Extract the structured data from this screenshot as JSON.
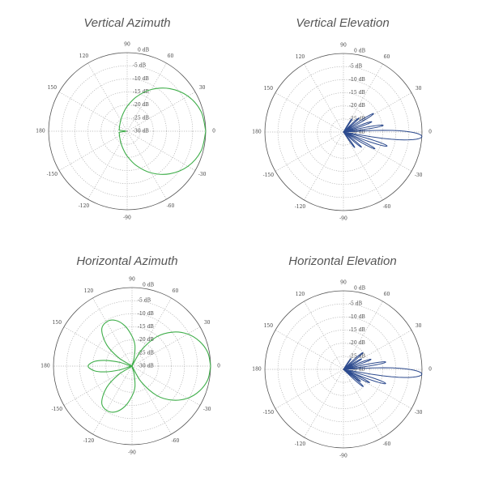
{
  "chart_data": [
    {
      "type": "polar-line",
      "title": "Vertical Azimuth",
      "color": "#3fae4a",
      "r_range_db": [
        -30,
        0
      ],
      "r_ticks": [
        "0 dB",
        "-5 dB",
        "-10 dB",
        "-15 dB",
        "-20 dB",
        "-25 dB",
        "-30 dB"
      ],
      "angle_ticks": [
        "0",
        "30",
        "60",
        "90",
        "120",
        "150",
        "180",
        "-150",
        "-120",
        "-90",
        "-60",
        "-30"
      ],
      "points": [
        [
          0,
          0
        ],
        [
          15,
          -0.8
        ],
        [
          30,
          -3.2
        ],
        [
          45,
          -7.0
        ],
        [
          60,
          -11.6
        ],
        [
          75,
          -16.4
        ],
        [
          90,
          -20.5
        ],
        [
          105,
          -23.4
        ],
        [
          120,
          -25.1
        ],
        [
          135,
          -26.1
        ],
        [
          150,
          -26.6
        ],
        [
          165,
          -26.9
        ],
        [
          172,
          -27
        ],
        [
          175,
          -29.5
        ],
        [
          180,
          -29.5
        ],
        [
          185,
          -29.5
        ],
        [
          188,
          -27
        ],
        [
          195,
          -26.9
        ],
        [
          210,
          -26.6
        ],
        [
          225,
          -26.1
        ],
        [
          240,
          -25.1
        ],
        [
          255,
          -23.4
        ],
        [
          270,
          -20.5
        ],
        [
          285,
          -16.4
        ],
        [
          300,
          -11.6
        ],
        [
          315,
          -7.0
        ],
        [
          330,
          -3.2
        ],
        [
          345,
          -0.8
        ],
        [
          360,
          0
        ]
      ]
    },
    {
      "type": "polar-lobes",
      "title": "Vertical Elevation",
      "color": "#2c4a8e",
      "r_range_db": [
        -30,
        0
      ],
      "r_ticks": [
        "0 dB",
        "-5 dB",
        "-10 dB",
        "-15 dB",
        "-20 dB",
        "-25 dB",
        "-30 dB"
      ],
      "angle_ticks": [
        "0",
        "30",
        "60",
        "90",
        "120",
        "150",
        "180",
        "-150",
        "-120",
        "-90",
        "-60",
        "-30"
      ],
      "lobes": [
        {
          "angle": -3.3,
          "peak_db": 0,
          "half_width": 7
        },
        {
          "angle": 9.6,
          "peak_db": -14.6,
          "half_width": 3
        },
        {
          "angle": 20,
          "peak_db": -18.5,
          "half_width": 3
        },
        {
          "angle": 31.5,
          "peak_db": -16.5,
          "half_width": 3
        },
        {
          "angle": 42,
          "peak_db": -22,
          "half_width": 3
        },
        {
          "angle": 57,
          "peak_db": -24,
          "half_width": 3
        },
        {
          "angle": -17.8,
          "peak_db": -12.5,
          "half_width": 3.5
        },
        {
          "angle": -28,
          "peak_db": -16.4,
          "half_width": 3
        },
        {
          "angle": -40,
          "peak_db": -21,
          "half_width": 3
        },
        {
          "angle": -54,
          "peak_db": -22.7,
          "half_width": 3
        }
      ]
    },
    {
      "type": "polar-line",
      "title": "Horizontal Azimuth",
      "color": "#3fae4a",
      "r_range_db": [
        -30,
        0
      ],
      "r_ticks": [
        "0 dB",
        "-5 dB",
        "-10 dB",
        "-15 dB",
        "-20 dB",
        "-25 dB",
        "-30 dB"
      ],
      "angle_ticks": [
        "0",
        "30",
        "60",
        "90",
        "120",
        "150",
        "180",
        "-150",
        "-120",
        "-90",
        "-60",
        "-30"
      ],
      "points": [
        [
          0,
          0
        ],
        [
          10,
          -0.6
        ],
        [
          20,
          -2.5
        ],
        [
          30,
          -5.5
        ],
        [
          40,
          -9.8
        ],
        [
          50,
          -15.4
        ],
        [
          60,
          -23.2
        ],
        [
          67,
          -30
        ],
        [
          75,
          -27
        ],
        [
          82,
          -22
        ],
        [
          90,
          -18.6
        ],
        [
          100,
          -14.4
        ],
        [
          110,
          -11.4
        ],
        [
          120,
          -10.5
        ],
        [
          130,
          -12
        ],
        [
          140,
          -17.4
        ],
        [
          148,
          -24
        ],
        [
          155,
          -30
        ],
        [
          163,
          -25
        ],
        [
          168,
          -19.5
        ],
        [
          173,
          -15.5
        ],
        [
          180,
          -13.2
        ],
        [
          187,
          -15.5
        ],
        [
          192,
          -19.5
        ],
        [
          197,
          -25
        ],
        [
          205,
          -30
        ],
        [
          212,
          -24
        ],
        [
          220,
          -17.4
        ],
        [
          230,
          -12
        ],
        [
          240,
          -10.5
        ],
        [
          250,
          -11.4
        ],
        [
          260,
          -14.4
        ],
        [
          270,
          -18.6
        ],
        [
          278,
          -22
        ],
        [
          285,
          -27
        ],
        [
          293,
          -30
        ],
        [
          300,
          -23.2
        ],
        [
          310,
          -15.4
        ],
        [
          320,
          -9.8
        ],
        [
          330,
          -5.5
        ],
        [
          340,
          -2.5
        ],
        [
          350,
          -0.6
        ],
        [
          360,
          0
        ]
      ]
    },
    {
      "type": "polar-lobes",
      "title": "Horizontal Elevation",
      "color": "#2c4a8e",
      "r_range_db": [
        -30,
        0
      ],
      "r_ticks": [
        "0 dB",
        "-5 dB",
        "-10 dB",
        "-15 dB",
        "-20 dB",
        "-25 dB",
        "-30 dB"
      ],
      "angle_ticks": [
        "0",
        "30",
        "60",
        "90",
        "120",
        "150",
        "180",
        "-150",
        "-120",
        "-90",
        "-60",
        "-30"
      ],
      "lobes": [
        {
          "angle": -3.5,
          "peak_db": 0,
          "half_width": 7
        },
        {
          "angle": 9.8,
          "peak_db": -13.6,
          "half_width": 3
        },
        {
          "angle": 20,
          "peak_db": -18.8,
          "half_width": 3
        },
        {
          "angle": 30,
          "peak_db": -22,
          "half_width": 3
        },
        {
          "angle": 40.7,
          "peak_db": -20.2,
          "half_width": 3
        },
        {
          "angle": 55,
          "peak_db": -25,
          "half_width": 3
        },
        {
          "angle": -18.6,
          "peak_db": -13,
          "half_width": 3.5
        },
        {
          "angle": -27,
          "peak_db": -18.8,
          "half_width": 3
        },
        {
          "angle": -35,
          "peak_db": -22,
          "half_width": 3
        },
        {
          "angle": -41,
          "peak_db": -20,
          "half_width": 3
        }
      ]
    }
  ]
}
